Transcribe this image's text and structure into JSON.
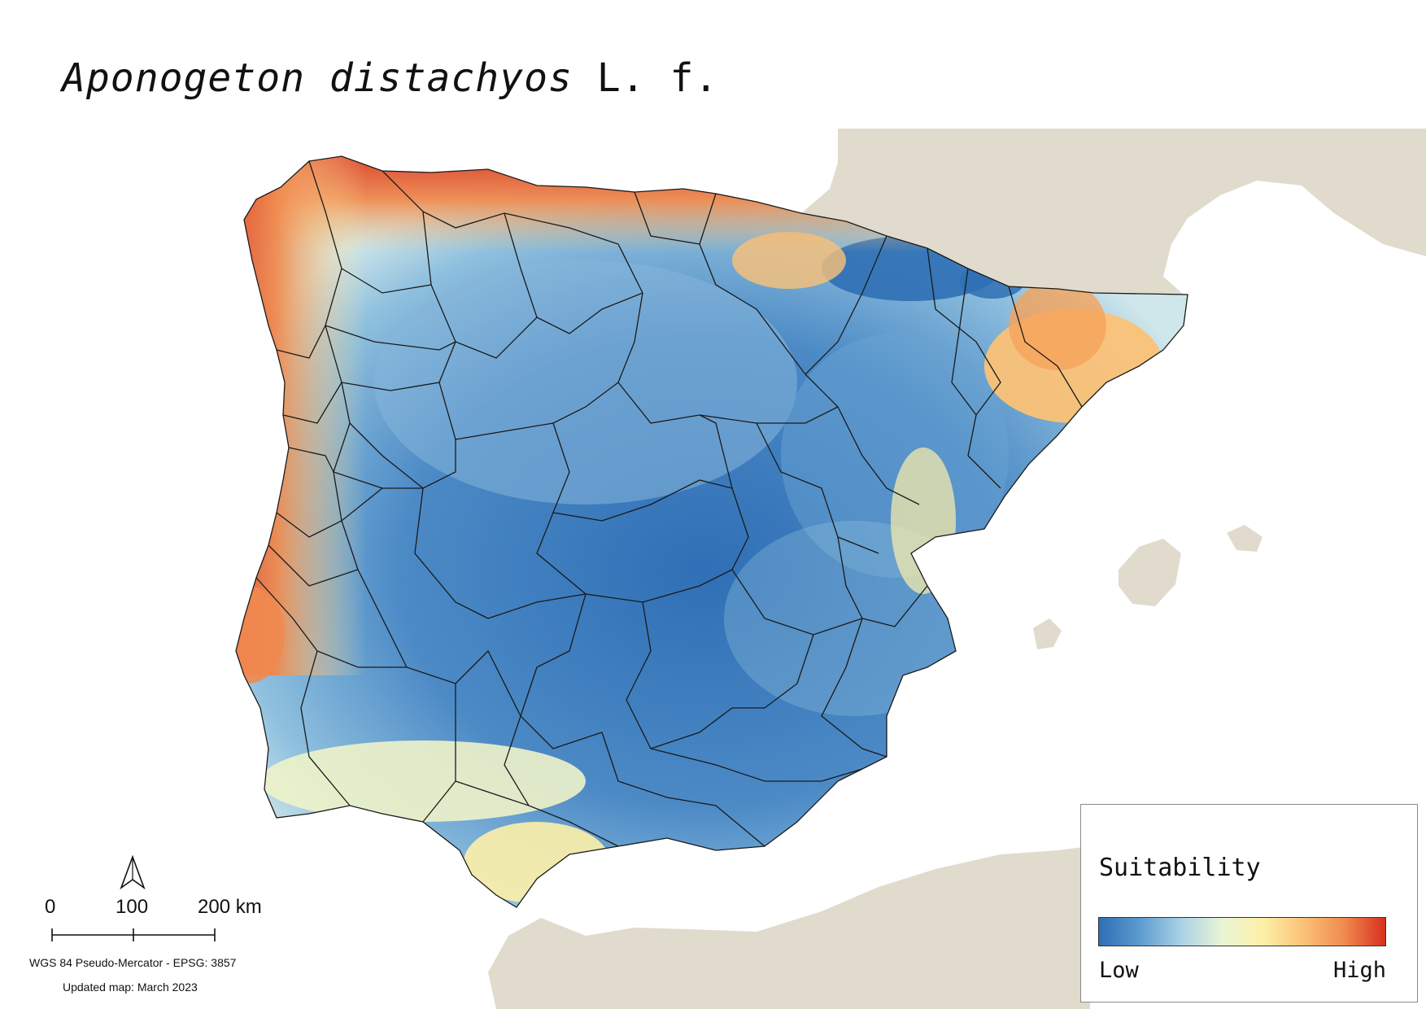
{
  "title": {
    "species": "Aponogeton distachyos",
    "authority": "L. f."
  },
  "scale_bar": {
    "labels": [
      "0",
      "100",
      "200 km"
    ]
  },
  "north_arrow_icon": "north-arrow-icon",
  "projection_note": "WGS 84 Pseudo-Mercator  - EPSG: 3857",
  "updated_note": "Updated map: March 2023",
  "legend": {
    "title": "Suitability",
    "low_label": "Low",
    "high_label": "High",
    "ramp_colors": [
      "#2f6fb5",
      "#5c9bcf",
      "#a9d1e6",
      "#e9f4d4",
      "#fdf0a8",
      "#fbc277",
      "#f08a4f",
      "#d7301f"
    ]
  },
  "colors": {
    "land_outside": "#e0dbcd",
    "sea": "#ffffff",
    "boundary": "#1a1a1a",
    "low_suitability": "#2f6fb5",
    "high_suitability": "#d7301f"
  }
}
